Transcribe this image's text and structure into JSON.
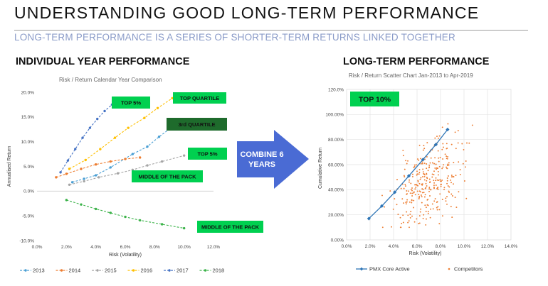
{
  "header": {
    "title": "UNDERSTANDING GOOD LONG-TERM PERFORMANCE",
    "subtitle": "LONG-TERM PERFORMANCE IS A SERIES OF SHORTER-TERM RETURNS LINKED TOGETHER"
  },
  "left_section": {
    "heading": "INDIVIDUAL YEAR PERFORMANCE"
  },
  "right_section": {
    "heading": "LONG-TERM PERFORMANCE"
  },
  "arrow": {
    "label_line1": "COMBINE 6",
    "label_line2": "YEARS"
  },
  "colors": {
    "2013": "#4a9fd4",
    "2014": "#ed7d31",
    "2015": "#a5a5a5",
    "2016": "#ffc000",
    "2017": "#4472c4",
    "2018": "#3cb34a",
    "tag_green": "#00d050",
    "tag_dark": "#1e6b2c",
    "arrow": "#4a6bd4",
    "pmx": "#2e75b6",
    "competitors": "#ed7d31"
  },
  "chart_data": [
    {
      "type": "line",
      "title": "Risk / Return Calendar Year Comparison",
      "xlabel": "Risk (Volatility)",
      "ylabel": "Annualised Return",
      "xlim": [
        0,
        12
      ],
      "ylim": [
        -10,
        20
      ],
      "x_ticks": [
        "0.0%",
        "2.0%",
        "4.0%",
        "6.0%",
        "8.0%",
        "10.0%",
        "12.0%"
      ],
      "y_ticks": [
        "-10.0%",
        "-5.0%",
        "0.0%",
        "5.0%",
        "10.0%",
        "15.0%",
        "20.0%"
      ],
      "grid": false,
      "legend": "bottom",
      "series": [
        {
          "name": "2013",
          "points": [
            [
              2.4,
              1.8
            ],
            [
              3.2,
              2.5
            ],
            [
              4.0,
              3.2
            ],
            [
              5.0,
              4.8
            ],
            [
              6.5,
              7.5
            ],
            [
              7.5,
              9.0
            ],
            [
              8.3,
              11.0
            ],
            [
              9.2,
              13.0
            ]
          ]
        },
        {
          "name": "2014",
          "points": [
            [
              1.3,
              2.8
            ],
            [
              2.0,
              3.5
            ],
            [
              3.0,
              4.5
            ],
            [
              4.0,
              5.4
            ],
            [
              5.0,
              6.0
            ],
            [
              6.0,
              6.5
            ],
            [
              7.0,
              6.8
            ]
          ]
        },
        {
          "name": "2015",
          "points": [
            [
              2.2,
              1.3
            ],
            [
              3.2,
              2.0
            ],
            [
              4.2,
              2.8
            ],
            [
              5.5,
              3.6
            ],
            [
              6.5,
              4.3
            ],
            [
              7.5,
              5.2
            ],
            [
              8.5,
              6.0
            ],
            [
              10.0,
              7.2
            ]
          ]
        },
        {
          "name": "2016",
          "points": [
            [
              2.2,
              4.5
            ],
            [
              3.3,
              6.3
            ],
            [
              4.3,
              8.5
            ],
            [
              5.3,
              10.8
            ],
            [
              6.2,
              12.8
            ],
            [
              7.3,
              14.8
            ],
            [
              8.2,
              16.8
            ],
            [
              9.2,
              18.8
            ]
          ]
        },
        {
          "name": "2017",
          "points": [
            [
              1.6,
              3.8
            ],
            [
              2.1,
              6.2
            ],
            [
              2.6,
              8.5
            ],
            [
              3.1,
              10.8
            ],
            [
              3.6,
              12.8
            ],
            [
              4.1,
              14.6
            ],
            [
              4.6,
              16.2
            ],
            [
              5.1,
              17.5
            ]
          ]
        },
        {
          "name": "2018",
          "points": [
            [
              2.0,
              -1.8
            ],
            [
              3.0,
              -2.7
            ],
            [
              4.0,
              -3.6
            ],
            [
              5.0,
              -4.4
            ],
            [
              6.0,
              -5.2
            ],
            [
              7.0,
              -5.9
            ],
            [
              8.5,
              -6.7
            ],
            [
              10.0,
              -7.5
            ]
          ]
        }
      ],
      "annotations": [
        {
          "text": "TOP 5%",
          "style": "green",
          "x": 5.0,
          "y": 18.0
        },
        {
          "text": "TOP QUARTILE",
          "style": "green",
          "x": 9.2,
          "y": 18.8
        },
        {
          "text": "3rd QUARTILE",
          "style": "dark",
          "x": 9.2,
          "y": 13.0
        },
        {
          "text": "TOP 5%",
          "style": "green",
          "x": 10.0,
          "y": 7.2
        },
        {
          "text": "MIDDLE OF THE PACK",
          "style": "green",
          "x": 7.2,
          "y": 3.0
        },
        {
          "text": "MIDDLE OF THE PACK",
          "style": "green",
          "x": 10.0,
          "y": -7.5
        }
      ]
    },
    {
      "type": "scatter",
      "title": "Risk / Return Scatter Chart Jan-2013 to Apr-2019",
      "xlabel": "Risk (Volatility)",
      "ylabel": "Cumulative Return",
      "xlim": [
        0,
        14
      ],
      "ylim": [
        0,
        120
      ],
      "x_ticks": [
        "0.0%",
        "2.0%",
        "4.0%",
        "6.0%",
        "8.0%",
        "10.0%",
        "12.0%",
        "14.0%"
      ],
      "y_ticks": [
        "0.00%",
        "20.00%",
        "40.00%",
        "60.00%",
        "80.00%",
        "100.00%",
        "120.0%"
      ],
      "grid": true,
      "legend": "bottom",
      "badge": "TOP 10%",
      "series": [
        {
          "name": "PMX Core Active",
          "type": "line",
          "points": [
            [
              1.9,
              17
            ],
            [
              3.0,
              27
            ],
            [
              4.1,
              38
            ],
            [
              5.3,
              51
            ],
            [
              6.5,
              64
            ],
            [
              7.6,
              76
            ],
            [
              8.6,
              88
            ]
          ]
        },
        {
          "name": "Competitors",
          "type": "scatter",
          "cloud": {
            "x_center": 7.0,
            "x_spread": 2.0,
            "y_center": 45,
            "y_spread": 18,
            "slope": 6.0,
            "count": 320,
            "x_range": [
              2.0,
              12.2
            ],
            "y_range": [
              10,
              110
            ]
          }
        }
      ]
    }
  ]
}
